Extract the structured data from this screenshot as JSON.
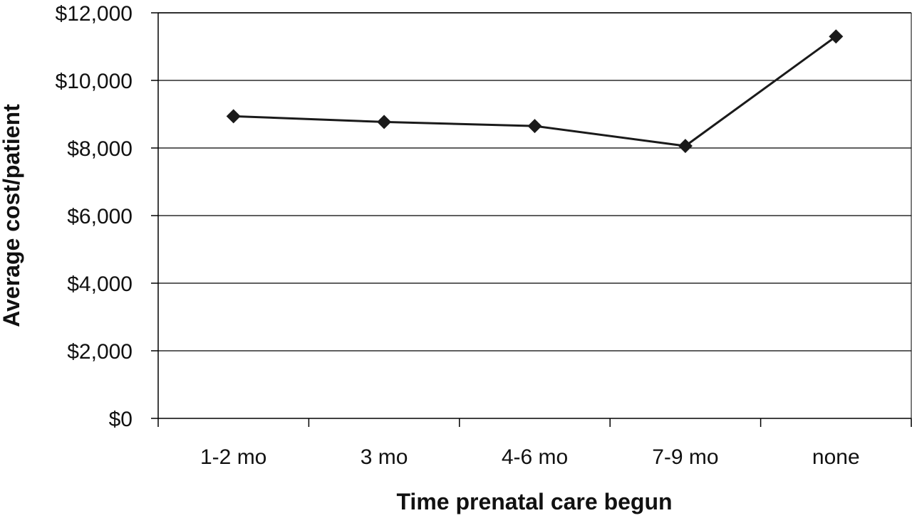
{
  "chart_data": {
    "type": "line",
    "title": "",
    "xlabel": "Time prenatal care begun",
    "ylabel": "Average cost/patient",
    "categories": [
      "1-2 mo",
      "3 mo",
      "4-6 mo",
      "7-9 mo",
      "none"
    ],
    "series": [
      {
        "values": [
          8940,
          8770,
          8650,
          8060,
          11300
        ]
      }
    ],
    "ylim": [
      0,
      12000
    ],
    "yticks": [
      0,
      2000,
      4000,
      6000,
      8000,
      10000,
      12000
    ],
    "ytick_labels": [
      "$0",
      "$2,000",
      "$4,000",
      "$6,000",
      "$8,000",
      "$10,000",
      "$12,000"
    ],
    "grid": true,
    "legend": "none",
    "marker": "diamond",
    "colors": {
      "line": "#1a1a1a",
      "grid": "#000000",
      "frame": "#808080"
    }
  }
}
